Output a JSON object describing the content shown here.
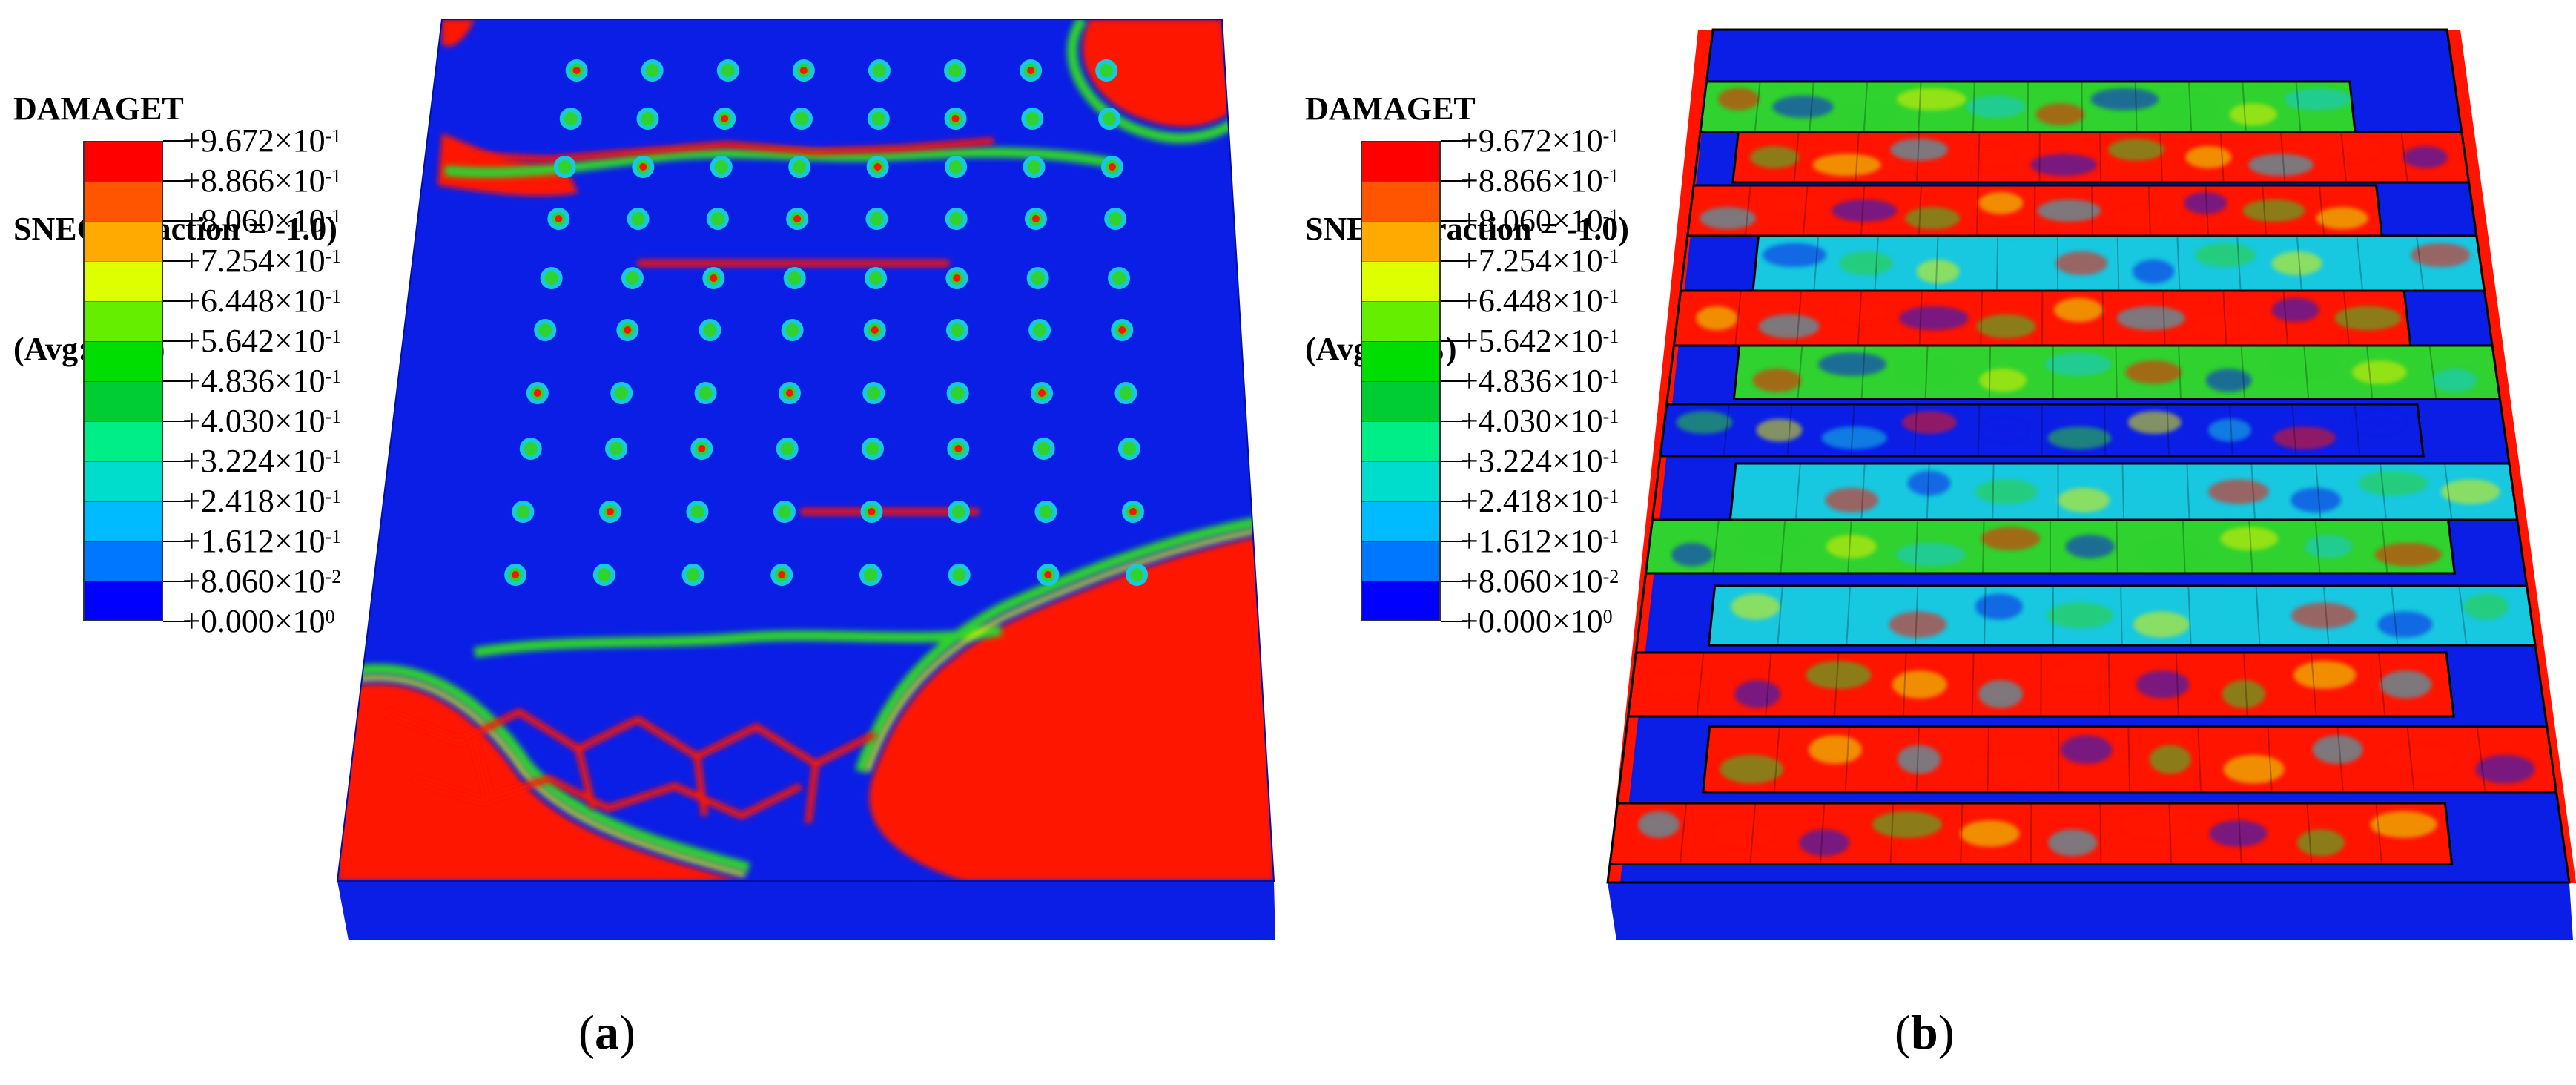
{
  "panels": [
    {
      "id": "a",
      "legend": {
        "title": "DAMAGET",
        "variable": "SNEG, (fraction = -1.0)",
        "averaging": "(Avg:75%)"
      },
      "caption": {
        "open": "(",
        "letter": "a",
        "close": ")"
      },
      "description": "damage contour on solid slab top surface"
    },
    {
      "id": "b",
      "legend": {
        "title": "DAMAGET",
        "variable": "SNEG, (fraction = -1.0)",
        "averaging": "(Avg:75%)"
      },
      "caption": {
        "open": "(",
        "letter": "b",
        "close": ")"
      },
      "description": "damage contour on ribbed slab with internal walls"
    }
  ],
  "contour_scale": {
    "levels": [
      {
        "mantissa": "+9.672",
        "exp": "-1"
      },
      {
        "mantissa": "+8.866",
        "exp": "-1"
      },
      {
        "mantissa": "+8.060",
        "exp": "-1"
      },
      {
        "mantissa": "+7.254",
        "exp": "-1"
      },
      {
        "mantissa": "+6.448",
        "exp": "-1"
      },
      {
        "mantissa": "+5.642",
        "exp": "-1"
      },
      {
        "mantissa": "+4.836",
        "exp": "-1"
      },
      {
        "mantissa": "+4.030",
        "exp": "-1"
      },
      {
        "mantissa": "+3.224",
        "exp": "-1"
      },
      {
        "mantissa": "+2.418",
        "exp": "-1"
      },
      {
        "mantissa": "+1.612",
        "exp": "-1"
      },
      {
        "mantissa": "+8.060",
        "exp": "-2"
      },
      {
        "mantissa": "+0.000",
        "exp": "0"
      }
    ],
    "times_sign": "×10",
    "band_colors": [
      "#ff0000",
      "#ff5500",
      "#ffaa00",
      "#ddff00",
      "#66ee00",
      "#00dd00",
      "#00cc33",
      "#00ee88",
      "#00ddcc",
      "#00bbff",
      "#0077ff",
      "#0000ff"
    ]
  },
  "colors": {
    "blue": "#0a1ee6",
    "red": "#ff1400",
    "green": "#2fd22f",
    "yellow": "#e6f000",
    "cyan": "#17c8e0"
  }
}
